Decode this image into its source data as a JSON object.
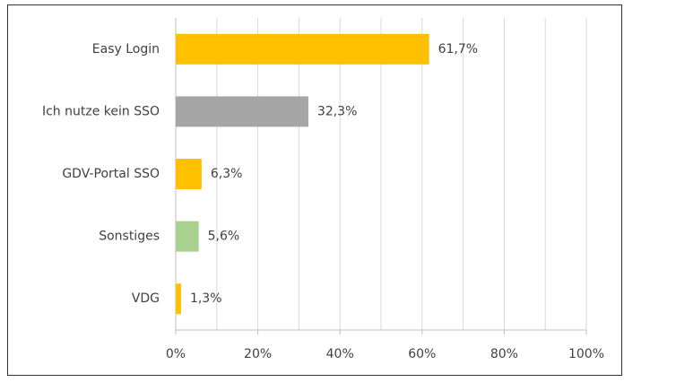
{
  "chart_data": {
    "type": "hbar",
    "categories": [
      "Easy Login",
      "Ich nutze kein SSO",
      "GDV-Portal SSO",
      "Sonstiges",
      "VDG"
    ],
    "values": [
      61.7,
      32.3,
      6.3,
      5.6,
      1.3
    ],
    "value_labels": [
      "61,7%",
      "32,3%",
      "6,3%",
      "5,6%",
      "1,3%"
    ],
    "colors": [
      "#FFC000",
      "#A6A6A6",
      "#FFC000",
      "#A9D18E",
      "#FFC000"
    ],
    "xlim": [
      0,
      100
    ],
    "xticks": [
      {
        "value": 0,
        "label": "0%"
      },
      {
        "value": 20,
        "label": "20%"
      },
      {
        "value": 40,
        "label": "40%"
      },
      {
        "value": 60,
        "label": "60%"
      },
      {
        "value": 80,
        "label": "80%"
      },
      {
        "value": 100,
        "label": "100%"
      }
    ],
    "minor_xticks": [
      10,
      30,
      50,
      70,
      90
    ],
    "grid": true
  }
}
